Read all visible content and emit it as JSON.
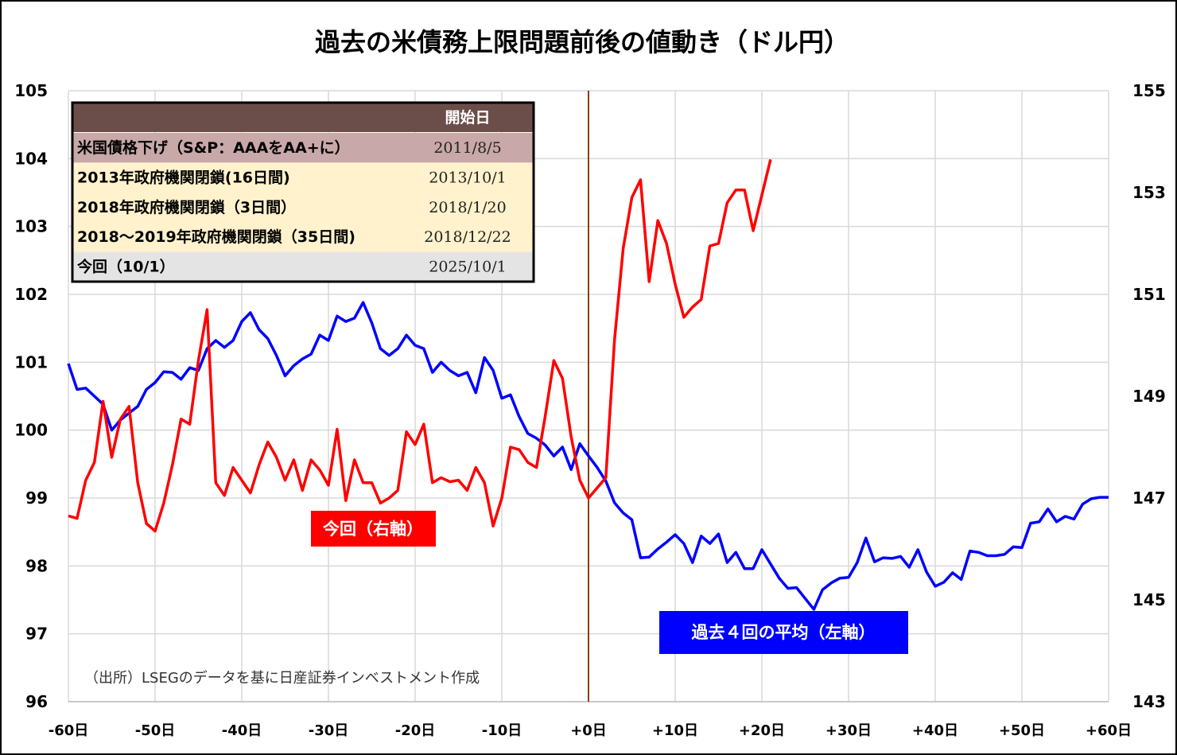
{
  "chart_data": {
    "type": "line",
    "title": "過去の米債務上限問題前後の値動き（ドル円）",
    "source_note": "（出所）LSEGのデータを基に日産証券インベストメント作成",
    "x_ticks": [
      "-60日",
      "-50日",
      "-40日",
      "-30日",
      "-20日",
      "-10日",
      "+0日",
      "+10日",
      "+20日",
      "+30日",
      "+40日",
      "+50日",
      "+60日"
    ],
    "xlim": [
      -60,
      60
    ],
    "left_axis": {
      "ylim": [
        96,
        105
      ],
      "ticks": [
        "96",
        "97",
        "98",
        "99",
        "100",
        "101",
        "102",
        "103",
        "104",
        "105"
      ]
    },
    "right_axis": {
      "ylim": [
        143,
        155
      ],
      "ticks": [
        "143",
        "145",
        "147",
        "149",
        "151",
        "153",
        "155"
      ]
    },
    "event_line_x": 0,
    "grid": true,
    "series": [
      {
        "name": "過去４回の平均（左軸）",
        "axis": "left",
        "color": "#0000ff",
        "x": [
          -60,
          -59,
          -58,
          -57,
          -56,
          -55,
          -54,
          -53,
          -52,
          -51,
          -50,
          -49,
          -48,
          -47,
          -46,
          -45,
          -44,
          -43,
          -42,
          -41,
          -40,
          -39,
          -38,
          -37,
          -36,
          -35,
          -34,
          -33,
          -32,
          -31,
          -30,
          -29,
          -28,
          -27,
          -26,
          -25,
          -24,
          -23,
          -22,
          -21,
          -20,
          -19,
          -18,
          -17,
          -16,
          -15,
          -14,
          -13,
          -12,
          -11,
          -10,
          -9,
          -8,
          -7,
          -6,
          -5,
          -4,
          -3,
          -2,
          -1,
          0,
          1,
          2,
          3,
          4,
          5,
          6,
          7,
          8,
          9,
          10,
          11,
          12,
          13,
          14,
          15,
          16,
          17,
          18,
          19,
          20,
          21,
          22,
          23,
          24,
          25,
          26,
          27,
          28,
          29,
          30,
          31,
          32,
          33,
          34,
          35,
          36,
          37,
          38,
          39,
          40,
          41,
          42,
          43,
          44,
          45,
          46,
          47,
          48,
          49,
          50,
          51,
          52,
          53,
          54,
          55,
          56,
          57,
          58,
          59,
          60
        ],
        "values": [
          100.98,
          100.6,
          100.62,
          100.5,
          100.38,
          100.0,
          100.15,
          100.25,
          100.35,
          100.6,
          100.7,
          100.86,
          100.85,
          100.75,
          100.92,
          100.88,
          101.2,
          101.32,
          101.22,
          101.32,
          101.6,
          101.73,
          101.48,
          101.35,
          101.1,
          100.8,
          100.95,
          101.05,
          101.12,
          101.4,
          101.32,
          101.68,
          101.6,
          101.65,
          101.88,
          101.58,
          101.2,
          101.1,
          101.2,
          101.4,
          101.25,
          101.2,
          100.85,
          101.0,
          100.88,
          100.8,
          100.85,
          100.55,
          101.07,
          100.88,
          100.47,
          100.52,
          100.2,
          99.95,
          99.88,
          99.78,
          99.62,
          99.75,
          99.42,
          99.8,
          99.62,
          99.45,
          99.25,
          98.93,
          98.78,
          98.68,
          98.12,
          98.13,
          98.25,
          98.35,
          98.46,
          98.33,
          98.05,
          98.44,
          98.33,
          98.47,
          98.05,
          98.2,
          97.96,
          97.96,
          98.24,
          98.03,
          97.82,
          97.67,
          97.68,
          97.52,
          97.36,
          97.65,
          97.75,
          97.82,
          97.83,
          98.05,
          98.41,
          98.06,
          98.12,
          98.11,
          98.14,
          97.98,
          98.24,
          97.91,
          97.7,
          97.76,
          97.9,
          97.8,
          98.22,
          98.2,
          98.15,
          98.15,
          98.17,
          98.28,
          98.27,
          98.63,
          98.65,
          98.84,
          98.65,
          98.73,
          98.69,
          98.91,
          98.99,
          99.01,
          99.01
        ]
      },
      {
        "name": "今回（右軸）",
        "axis": "right",
        "color": "#ff0000",
        "x": [
          -60,
          -59,
          -58,
          -57,
          -56,
          -55,
          -54,
          -53,
          -52,
          -51,
          -50,
          -49,
          -48,
          -47,
          -46,
          -45,
          -44,
          -43,
          -42,
          -41,
          -40,
          -39,
          -38,
          -37,
          -36,
          -35,
          -34,
          -33,
          -32,
          -31,
          -30,
          -29,
          -28,
          -27,
          -26,
          -25,
          -24,
          -23,
          -22,
          -21,
          -20,
          -19,
          -18,
          -17,
          -16,
          -15,
          -14,
          -13,
          -12,
          -11,
          -10,
          -9,
          -8,
          -7,
          -6,
          -5,
          -4,
          -3,
          -2,
          -1,
          0,
          1,
          2,
          3,
          4,
          5,
          6,
          7,
          8,
          9,
          10,
          11,
          12,
          13,
          14,
          15,
          16,
          17,
          18,
          19,
          20,
          21
        ],
        "values": [
          146.65,
          146.6,
          147.35,
          147.7,
          148.9,
          147.8,
          148.55,
          148.8,
          147.3,
          146.5,
          146.35,
          146.9,
          147.65,
          148.55,
          148.45,
          149.7,
          150.7,
          147.3,
          147.05,
          147.6,
          147.35,
          147.1,
          147.65,
          148.1,
          147.8,
          147.35,
          147.75,
          147.15,
          147.75,
          147.55,
          147.25,
          148.35,
          146.95,
          147.75,
          147.3,
          147.3,
          146.9,
          147.0,
          147.15,
          148.3,
          148.05,
          148.45,
          147.3,
          147.4,
          147.32,
          147.35,
          147.15,
          147.6,
          147.3,
          146.45,
          147.0,
          148.0,
          147.95,
          147.7,
          147.6,
          148.6,
          149.7,
          149.35,
          148.2,
          147.35,
          147.0,
          147.2,
          147.4,
          150.1,
          151.9,
          152.9,
          153.25,
          151.25,
          152.45,
          152.0,
          151.2,
          150.55,
          150.75,
          150.9,
          151.95,
          152.0,
          152.8,
          153.05,
          153.05,
          152.25,
          152.95,
          153.65
        ]
      }
    ],
    "legend_table": {
      "header": "開始日",
      "rows": [
        {
          "label": "米国債格下げ（S&P：AAAをAA+に）",
          "date": "2011/8/5",
          "bg": "#c8a8a8"
        },
        {
          "label": "2013年政府機関閉鎖(16日間)",
          "date": "2013/10/1",
          "bg": "#fff2cc"
        },
        {
          "label": "2018年政府機関閉鎖（3日間）",
          "date": "2018/1/20",
          "bg": "#fff2cc"
        },
        {
          "label": "2018～2019年政府機関閉鎖（35日間)",
          "date": "2018/12/22",
          "bg": "#fff2cc"
        },
        {
          "label": "今回（10/1）",
          "date": "2025/10/1",
          "bg": "#e4e4e4"
        }
      ],
      "header_bg": "#6b4e4a"
    },
    "annotations": {
      "current_label": "今回（右軸）",
      "average_label": "過去４回の平均（左軸）"
    }
  }
}
